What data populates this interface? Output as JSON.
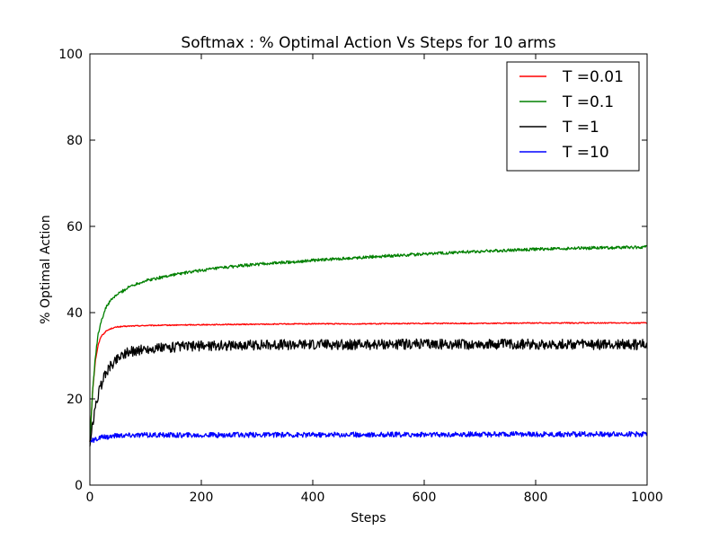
{
  "chart_data": {
    "type": "line",
    "title": "Softmax : % Optimal Action Vs Steps for 10 arms",
    "xlabel": "Steps",
    "ylabel": "% Optimal Action",
    "xlim": [
      0,
      1000
    ],
    "ylim": [
      0,
      100
    ],
    "xticks": [
      0,
      200,
      400,
      600,
      800,
      1000
    ],
    "yticks": [
      0,
      20,
      40,
      60,
      80,
      100
    ],
    "xtick_labels": [
      "0",
      "200",
      "400",
      "600",
      "800",
      "1000"
    ],
    "ytick_labels": [
      "0",
      "20",
      "40",
      "60",
      "80",
      "100"
    ],
    "grid": false,
    "legend_position": "top-right",
    "series": [
      {
        "name": "T =0.01",
        "color": "#ff0000",
        "x": [
          0,
          5,
          10,
          15,
          20,
          30,
          40,
          50,
          75,
          100,
          150,
          200,
          300,
          400,
          500,
          600,
          700,
          800,
          900,
          1000
        ],
        "y": [
          10,
          22,
          29,
          32.5,
          34.5,
          35.8,
          36.4,
          36.7,
          36.9,
          37.0,
          37.1,
          37.2,
          37.3,
          37.4,
          37.4,
          37.5,
          37.5,
          37.6,
          37.6,
          37.6
        ]
      },
      {
        "name": "T =0.1",
        "color": "#008000",
        "x": [
          0,
          5,
          10,
          15,
          20,
          30,
          40,
          50,
          75,
          100,
          150,
          200,
          250,
          300,
          400,
          500,
          600,
          700,
          800,
          900,
          1000
        ],
        "y": [
          10,
          22,
          30,
          35,
          38,
          41.5,
          43.2,
          44.3,
          46.3,
          47.4,
          48.8,
          49.8,
          50.6,
          51.2,
          52.1,
          52.9,
          53.6,
          54.2,
          54.7,
          55.0,
          55.2
        ]
      },
      {
        "name": "T =1",
        "color": "#000000",
        "x": [
          0,
          5,
          10,
          15,
          20,
          25,
          30,
          40,
          50,
          60,
          75,
          100,
          150,
          200,
          300,
          400,
          500,
          600,
          700,
          800,
          900,
          1000
        ],
        "y": [
          9,
          14,
          18,
          21,
          23,
          25,
          26.5,
          28,
          29.5,
          30.5,
          31,
          31.5,
          32,
          32.3,
          32.5,
          32.6,
          32.6,
          32.7,
          32.6,
          32.7,
          32.6,
          32.6
        ]
      },
      {
        "name": "T =10",
        "color": "#0000ff",
        "x": [
          0,
          10,
          20,
          50,
          100,
          200,
          400,
          600,
          800,
          1000
        ],
        "y": [
          10,
          10.6,
          11,
          11.5,
          11.6,
          11.6,
          11.7,
          11.7,
          11.8,
          11.8
        ]
      }
    ]
  }
}
